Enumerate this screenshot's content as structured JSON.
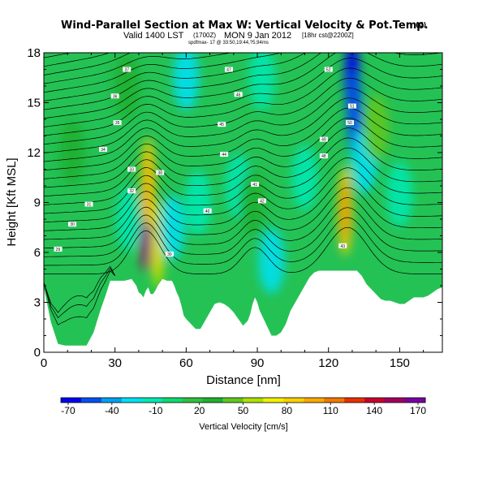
{
  "chart_data": {
    "type": "heatmap",
    "title": "Wind-Parallel Section at Max W: Vertical Velocity & Pot.Temp.",
    "title_mark": "(C)",
    "subtitle": "Valid 1400 LST",
    "subtitle_time": "(1700Z)",
    "subtitle_date": "MON 9 Jan 2012",
    "subtitle_run": "[18hr cst@2200Z]",
    "subtitle_source": "spdfmax- 17 @ 33:50,19:44,?5,94ms",
    "xlabel": "Distance [nm]",
    "ylabel": "Height [Kft MSL]",
    "xlim": [
      0,
      168
    ],
    "ylim": [
      0,
      18
    ],
    "xticks": [
      0,
      30,
      60,
      90,
      120,
      150
    ],
    "yticks": [
      0,
      3,
      6,
      9,
      12,
      15,
      18
    ],
    "colorbar": {
      "label": "Vertical Velocity [cm/s]",
      "tick_values": [
        -70,
        -40,
        -10,
        20,
        50,
        80,
        110,
        140,
        170
      ],
      "range": [
        -75,
        175
      ],
      "colors": [
        "#0000f0",
        "#0050f0",
        "#00a0f0",
        "#00e0f0",
        "#00e8b0",
        "#10d870",
        "#30c040",
        "#20b030",
        "#60c820",
        "#b0e000",
        "#f0f000",
        "#f8d000",
        "#f8a800",
        "#f07800",
        "#e83000",
        "#c80030",
        "#a00060",
        "#7800a0"
      ]
    },
    "terrain": {
      "distance": [
        0,
        3,
        6,
        9,
        12,
        15,
        18,
        21,
        24,
        26,
        28,
        30,
        34,
        37,
        39,
        40,
        41,
        42,
        43,
        44,
        45,
        46,
        47,
        48,
        50,
        52,
        54,
        55,
        56,
        57,
        58,
        59,
        60,
        62,
        64,
        66,
        68,
        70,
        72,
        74,
        76,
        78,
        80,
        82,
        84,
        86,
        87,
        88,
        89,
        90,
        91,
        92,
        94,
        96,
        98,
        100,
        102,
        104,
        106,
        108,
        110,
        112,
        114,
        116,
        118,
        120,
        124,
        128,
        132,
        134,
        136,
        138,
        140,
        142,
        144,
        146,
        148,
        150,
        152,
        154,
        156,
        158,
        160,
        162,
        164,
        166,
        168
      ],
      "height_kft": [
        3.9,
        1.8,
        0.5,
        0.4,
        0.4,
        0.4,
        0.4,
        1.2,
        2.6,
        3.4,
        4.3,
        4.3,
        4.3,
        4.4,
        4.0,
        3.6,
        3.5,
        3.3,
        3.7,
        3.9,
        3.5,
        3.5,
        3.7,
        4.0,
        4.4,
        4.3,
        4.3,
        4.0,
        3.6,
        3.3,
        2.8,
        2.2,
        2.0,
        1.7,
        1.4,
        1.4,
        1.9,
        2.4,
        2.9,
        3.0,
        2.9,
        2.7,
        2.4,
        2.0,
        1.6,
        1.9,
        2.3,
        2.9,
        3.3,
        3.0,
        2.5,
        2.2,
        1.6,
        1.0,
        1.0,
        1.2,
        1.7,
        2.5,
        3.0,
        3.5,
        4.0,
        4.5,
        4.8,
        4.9,
        4.9,
        4.9,
        4.9,
        4.9,
        4.9,
        4.6,
        4.1,
        3.8,
        3.5,
        3.2,
        3.1,
        3.1,
        3.0,
        2.9,
        2.9,
        3.1,
        3.3,
        3.3,
        3.3,
        3.4,
        3.6,
        3.8,
        3.9
      ]
    },
    "vertical_velocity_features": [
      {
        "distance": 43,
        "height_kft": 7.5,
        "w_cms": 150
      },
      {
        "distance": 44,
        "height_kft": 10.2,
        "w_cms": 80
      },
      {
        "distance": 48,
        "height_kft": 6.5,
        "w_cms": 60
      },
      {
        "distance": 127,
        "height_kft": 8.5,
        "w_cms": 90
      },
      {
        "distance": 130,
        "height_kft": 16.5,
        "w_cms": -70
      },
      {
        "distance": 131,
        "height_kft": 14.2,
        "w_cms": -50
      },
      {
        "distance": 135,
        "height_kft": 11.5,
        "w_cms": -20
      },
      {
        "distance": 60,
        "height_kft": 16.5,
        "w_cms": -30
      },
      {
        "distance": 92,
        "height_kft": 16.5,
        "w_cms": -15
      },
      {
        "distance": 65,
        "height_kft": 9.0,
        "w_cms": -10
      },
      {
        "distance": 82,
        "height_kft": 10.0,
        "w_cms": -15
      },
      {
        "distance": 110,
        "height_kft": 10.5,
        "w_cms": -12
      },
      {
        "distance": 150,
        "height_kft": 9.5,
        "w_cms": -10
      },
      {
        "distance": 54,
        "height_kft": 7.5,
        "w_cms": -25
      },
      {
        "distance": 36,
        "height_kft": 8.0,
        "w_cms": -15
      },
      {
        "distance": 96,
        "height_kft": 5.5,
        "w_cms": -20
      },
      {
        "distance": 140,
        "height_kft": 13.5,
        "w_cms": 40
      },
      {
        "distance": 35,
        "height_kft": 16.0,
        "w_cms": 30
      },
      {
        "distance": 12,
        "height_kft": 12.0,
        "w_cms": 25
      },
      {
        "distance": 88,
        "height_kft": 9.0,
        "w_cms": 30
      }
    ],
    "theta_contour_labels": [
      {
        "text": "29",
        "distance": 6,
        "height_kft": 6.2
      },
      {
        "text": "30",
        "distance": 12,
        "height_kft": 7.7
      },
      {
        "text": "31",
        "distance": 19,
        "height_kft": 8.9
      },
      {
        "text": "32",
        "distance": 37,
        "height_kft": 9.7
      },
      {
        "text": "33",
        "distance": 37,
        "height_kft": 11.0
      },
      {
        "text": "34",
        "distance": 25,
        "height_kft": 12.2
      },
      {
        "text": "35",
        "distance": 31,
        "height_kft": 13.8
      },
      {
        "text": "36",
        "distance": 30,
        "height_kft": 15.4
      },
      {
        "text": "37",
        "distance": 35,
        "height_kft": 17.0
      },
      {
        "text": "38",
        "distance": 49,
        "height_kft": 10.8
      },
      {
        "text": "39",
        "distance": 53,
        "height_kft": 5.9
      },
      {
        "text": "40",
        "distance": 69,
        "height_kft": 8.5
      },
      {
        "text": "41",
        "distance": 89,
        "height_kft": 10.1
      },
      {
        "text": "42",
        "distance": 92,
        "height_kft": 9.1
      },
      {
        "text": "43",
        "distance": 126,
        "height_kft": 6.4
      },
      {
        "text": "44",
        "distance": 76,
        "height_kft": 11.9
      },
      {
        "text": "45",
        "distance": 75,
        "height_kft": 13.7
      },
      {
        "text": "46",
        "distance": 82,
        "height_kft": 15.5
      },
      {
        "text": "47",
        "distance": 78,
        "height_kft": 17.0
      },
      {
        "text": "48",
        "distance": 118,
        "height_kft": 11.8
      },
      {
        "text": "49",
        "distance": 118,
        "height_kft": 12.8
      },
      {
        "text": "50",
        "distance": 129,
        "height_kft": 13.8
      },
      {
        "text": "51",
        "distance": 130,
        "height_kft": 14.8
      },
      {
        "text": "52",
        "distance": 120,
        "height_kft": 17.0
      }
    ]
  }
}
